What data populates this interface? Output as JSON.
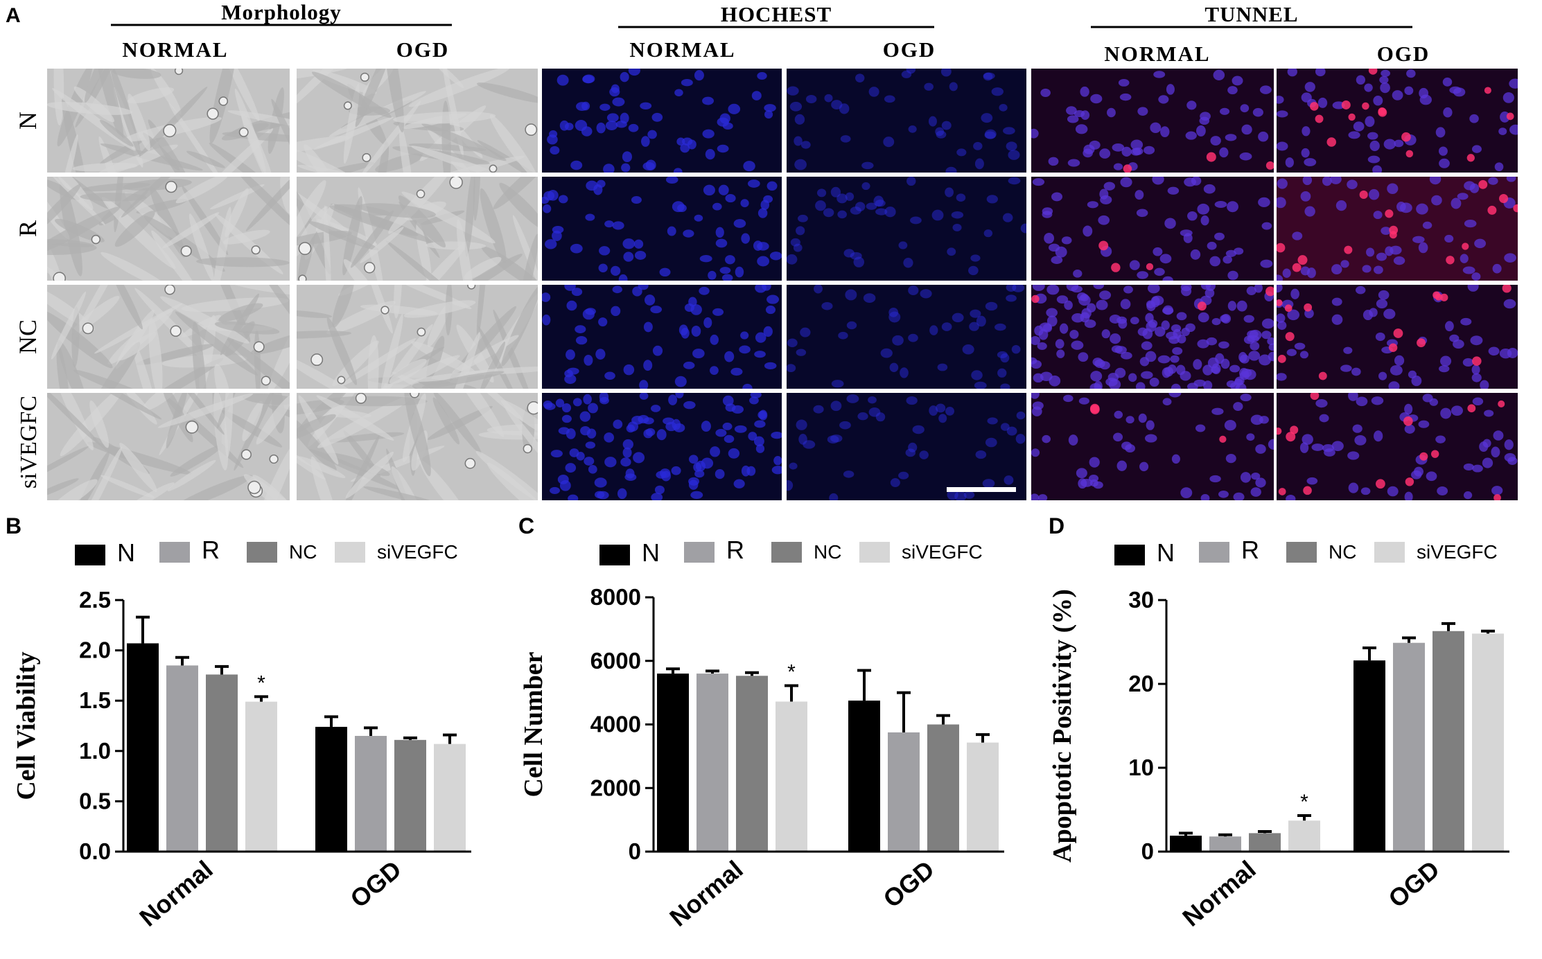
{
  "colors": {
    "N": "#000000",
    "R": "#a0a0a4",
    "NC": "#7f7f7f",
    "siVEGFC": "#d6d6d6",
    "morphology_bg": "#c4c4c4",
    "hoechst_bg": "#07072a",
    "hoechst_nuclei": "#2a2ad8",
    "tunel_bg": "#1a0420",
    "tunel_nuclei": "#5a34d8",
    "tunel_positive": "#ff3070"
  },
  "panel_a": {
    "letter": "A",
    "groups": [
      {
        "title": "Morphology",
        "conditions": [
          "NORMAL",
          "OGD"
        ],
        "icon": "brightfield-micrograph"
      },
      {
        "title": "HOCHEST",
        "conditions": [
          "NORMAL",
          "OGD"
        ],
        "icon": "hoechst-fluorescence-micrograph"
      },
      {
        "title": "TUNNEL",
        "conditions": [
          "NORMAL",
          "OGD"
        ],
        "icon": "tunel-fluorescence-micrograph"
      }
    ],
    "rows": [
      "N",
      "R",
      "NC",
      "siVEGFC"
    ]
  },
  "chart_data": [
    {
      "panel": "B",
      "type": "bar",
      "ylabel": "Cell Viability",
      "categories": [
        "Normal",
        "OGD"
      ],
      "legend": [
        "N",
        "R",
        "NC",
        "siVEGFC"
      ],
      "ylim": [
        0,
        2.5
      ],
      "yticks": [
        "0.0",
        "0.5",
        "1.0",
        "1.5",
        "2.0",
        "2.5"
      ],
      "series": [
        {
          "name": "N",
          "values": [
            2.07,
            1.24
          ],
          "errors": [
            0.26,
            0.1
          ]
        },
        {
          "name": "R",
          "values": [
            1.85,
            1.15
          ],
          "errors": [
            0.08,
            0.08
          ]
        },
        {
          "name": "NC",
          "values": [
            1.76,
            1.11
          ],
          "errors": [
            0.08,
            0.02
          ]
        },
        {
          "name": "siVEGFC",
          "values": [
            1.49,
            1.07
          ],
          "errors": [
            0.05,
            0.09
          ]
        }
      ],
      "annotations": [
        {
          "text": "*",
          "series": "siVEGFC",
          "category": "Normal"
        }
      ]
    },
    {
      "panel": "C",
      "type": "bar",
      "ylabel": "Cell Number",
      "categories": [
        "Normal",
        "OGD"
      ],
      "legend": [
        "N",
        "R",
        "NC",
        "siVEGFC"
      ],
      "ylim": [
        0,
        8000
      ],
      "yticks": [
        "0",
        "2000",
        "4000",
        "6000",
        "8000"
      ],
      "series": [
        {
          "name": "N",
          "values": [
            5600,
            4750
          ],
          "errors": [
            150,
            950
          ]
        },
        {
          "name": "R",
          "values": [
            5600,
            3750
          ],
          "errors": [
            80,
            1250
          ]
        },
        {
          "name": "NC",
          "values": [
            5530,
            4000
          ],
          "errors": [
            100,
            280
          ]
        },
        {
          "name": "siVEGFC",
          "values": [
            4720,
            3430
          ],
          "errors": [
            500,
            250
          ]
        }
      ],
      "annotations": [
        {
          "text": "*",
          "series": "siVEGFC",
          "category": "Normal"
        }
      ]
    },
    {
      "panel": "D",
      "type": "bar",
      "ylabel": "Apoptotic Positivity (%)",
      "categories": [
        "Normal",
        "OGD"
      ],
      "legend": [
        "N",
        "R",
        "NC",
        "siVEGFC"
      ],
      "ylim": [
        0,
        30
      ],
      "yticks": [
        "0",
        "10",
        "20",
        "30"
      ],
      "series": [
        {
          "name": "N",
          "values": [
            1.9,
            22.8
          ],
          "errors": [
            0.3,
            1.5
          ]
        },
        {
          "name": "R",
          "values": [
            1.8,
            24.9
          ],
          "errors": [
            0.2,
            0.6
          ]
        },
        {
          "name": "NC",
          "values": [
            2.2,
            26.3
          ],
          "errors": [
            0.2,
            0.9
          ]
        },
        {
          "name": "siVEGFC",
          "values": [
            3.7,
            26.0
          ],
          "errors": [
            0.6,
            0.3
          ]
        }
      ],
      "annotations": [
        {
          "text": "*",
          "series": "siVEGFC",
          "category": "Normal"
        }
      ]
    }
  ]
}
